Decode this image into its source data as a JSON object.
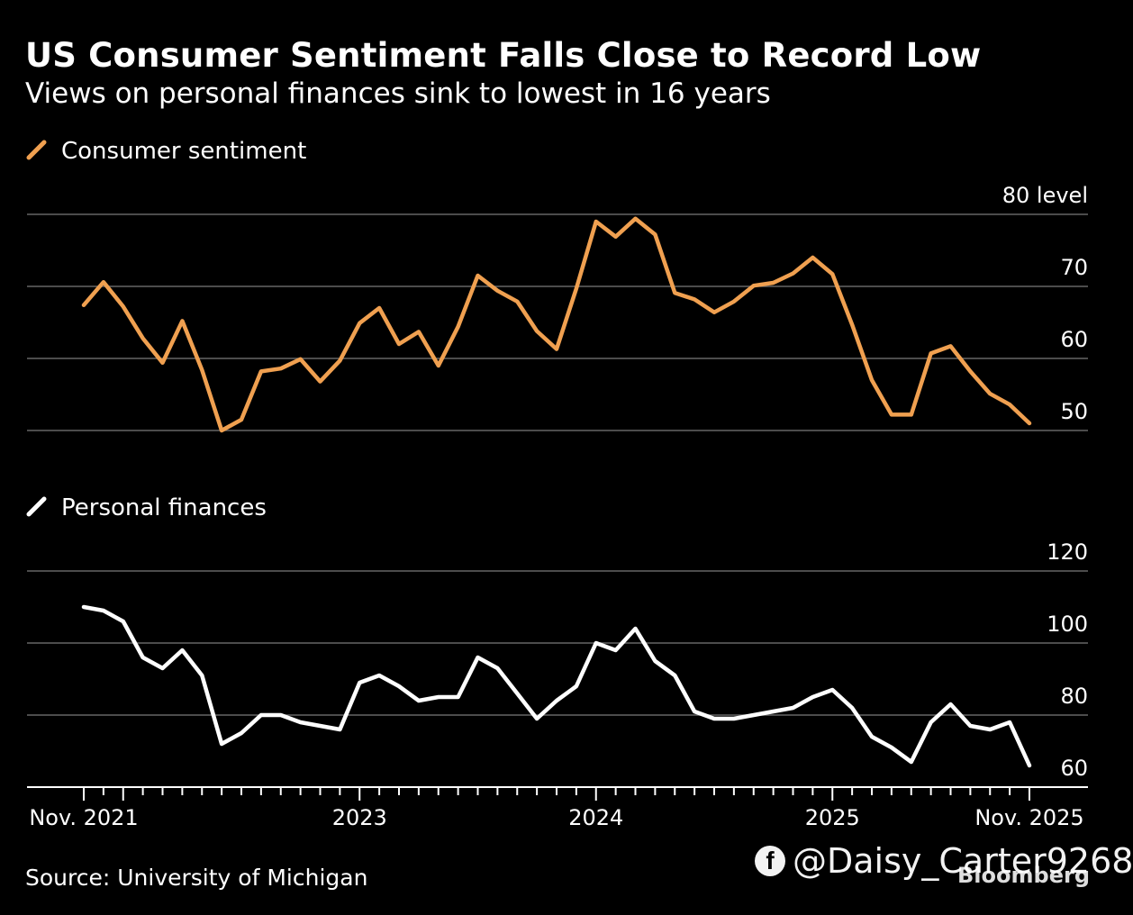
{
  "title": "US Consumer Sentiment Falls Close to Record Low",
  "subtitle": "Views on personal finances sink to lowest in 16 years",
  "source": "Source: University of Michigan",
  "brand": "Bloomberg",
  "watermark": {
    "icon": "facebook-icon",
    "handle": "@Daisy_Carter9268"
  },
  "colors": {
    "sentiment": "#F0A050",
    "finances": "#FFFFFF",
    "grid": "#666666",
    "background": "#000000"
  },
  "chart_data": [
    {
      "type": "line",
      "legend": "Consumer sentiment",
      "unit_label": "level",
      "ylim": [
        50,
        80
      ],
      "yticks": [
        80,
        70,
        60,
        50
      ],
      "grid": true,
      "x": [
        "2021-11",
        "2021-12",
        "2022-01",
        "2022-02",
        "2022-03",
        "2022-04",
        "2022-05",
        "2022-06",
        "2022-07",
        "2022-08",
        "2022-09",
        "2022-10",
        "2022-11",
        "2022-12",
        "2023-01",
        "2023-02",
        "2023-03",
        "2023-04",
        "2023-05",
        "2023-06",
        "2023-07",
        "2023-08",
        "2023-09",
        "2023-10",
        "2023-11",
        "2023-12",
        "2024-01",
        "2024-02",
        "2024-03",
        "2024-04",
        "2024-05",
        "2024-06",
        "2024-07",
        "2024-08",
        "2024-09",
        "2024-10",
        "2024-11",
        "2024-12",
        "2025-01",
        "2025-02",
        "2025-03",
        "2025-04",
        "2025-05",
        "2025-06",
        "2025-07",
        "2025-08",
        "2025-09",
        "2025-10",
        "2025-11"
      ],
      "values": [
        67.4,
        70.6,
        67.2,
        62.8,
        59.4,
        65.2,
        58.4,
        50.0,
        51.5,
        58.2,
        58.6,
        59.9,
        56.8,
        59.7,
        64.9,
        67.0,
        62.0,
        63.7,
        59.0,
        64.4,
        71.5,
        69.4,
        67.9,
        63.8,
        61.3,
        69.7,
        79.0,
        76.9,
        79.4,
        77.2,
        69.1,
        68.2,
        66.4,
        67.9,
        70.1,
        70.5,
        71.8,
        74.0,
        71.7,
        64.7,
        57.0,
        52.2,
        52.2,
        60.7,
        61.7,
        58.2,
        55.1,
        53.6,
        51.0
      ]
    },
    {
      "type": "line",
      "legend": "Personal finances",
      "ylim": [
        60,
        120
      ],
      "yticks": [
        120,
        100,
        80,
        60
      ],
      "grid": true,
      "x": [
        "2021-11",
        "2021-12",
        "2022-01",
        "2022-02",
        "2022-03",
        "2022-04",
        "2022-05",
        "2022-06",
        "2022-07",
        "2022-08",
        "2022-09",
        "2022-10",
        "2022-11",
        "2022-12",
        "2023-01",
        "2023-02",
        "2023-03",
        "2023-04",
        "2023-05",
        "2023-06",
        "2023-07",
        "2023-08",
        "2023-09",
        "2023-10",
        "2023-11",
        "2023-12",
        "2024-01",
        "2024-02",
        "2024-03",
        "2024-04",
        "2024-05",
        "2024-06",
        "2024-07",
        "2024-08",
        "2024-09",
        "2024-10",
        "2024-11",
        "2024-12",
        "2025-01",
        "2025-02",
        "2025-03",
        "2025-04",
        "2025-05",
        "2025-06",
        "2025-07",
        "2025-08",
        "2025-09",
        "2025-10",
        "2025-11"
      ],
      "values": [
        110,
        109,
        106,
        96,
        93,
        98,
        91,
        72,
        75,
        80,
        80,
        78,
        77,
        76,
        89,
        91,
        88,
        84,
        85,
        85,
        96,
        93,
        86,
        79,
        84,
        88,
        100,
        98,
        104,
        95,
        91,
        81,
        79,
        79,
        80,
        81,
        82,
        85,
        87,
        82,
        74,
        71,
        67,
        78,
        83,
        77,
        76,
        78,
        66
      ]
    }
  ],
  "x_axis": {
    "tick_labels": [
      {
        "label": "Nov. 2021",
        "x": "2021-11"
      },
      {
        "label": "2023",
        "x": "2023-01"
      },
      {
        "label": "2024",
        "x": "2024-01"
      },
      {
        "label": "2025",
        "x": "2025-01"
      },
      {
        "label": "Nov. 2025",
        "x": "2025-11"
      }
    ]
  }
}
